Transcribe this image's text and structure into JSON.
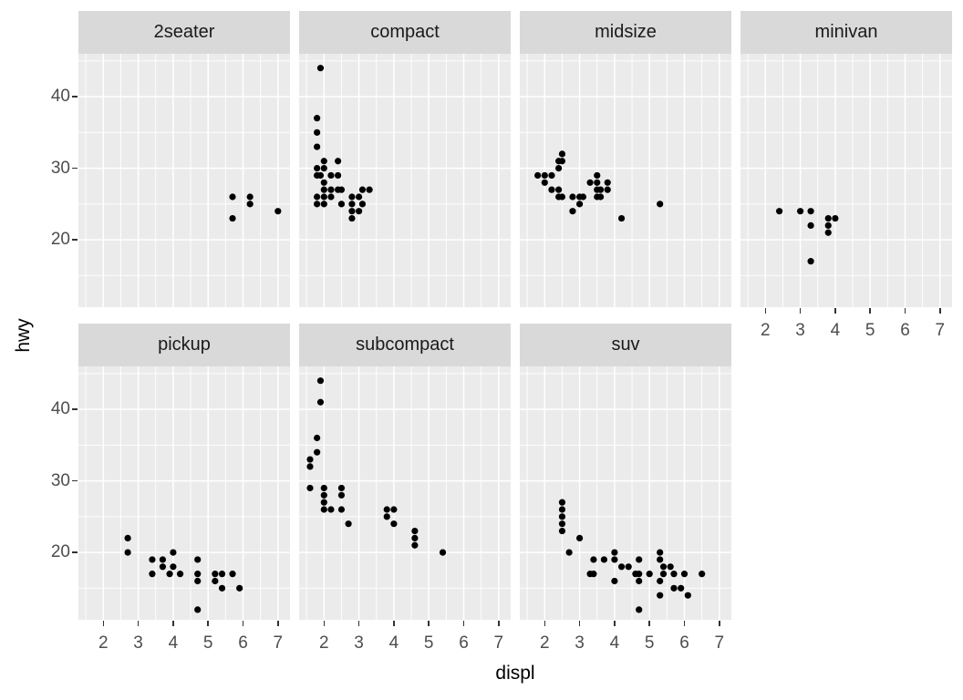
{
  "chart_data": {
    "type": "scatter",
    "title": "",
    "xlabel": "displ",
    "ylabel": "hwy",
    "facet_variable": "class",
    "x_ticks": [
      2,
      3,
      4,
      5,
      6,
      7
    ],
    "y_ticks": [
      20,
      30,
      40
    ],
    "x_minor_breaks": [
      1.5,
      2.5,
      3.5,
      4.5,
      5.5,
      6.5
    ],
    "y_minor_breaks": [
      15,
      25,
      35,
      45
    ],
    "xlim": [
      1.29,
      7.4
    ],
    "ylim": [
      10.6,
      46.0
    ],
    "grid": "white major and minor gridlines on gray panels",
    "legend": "none",
    "layout": "facet_wrap 4 columns x 2 rows, empty cell bottom-right",
    "facets": [
      {
        "label": "2seater",
        "points": [
          [
            5.7,
            26
          ],
          [
            5.7,
            23
          ],
          [
            6.2,
            26
          ],
          [
            6.2,
            25
          ],
          [
            7.0,
            24
          ]
        ]
      },
      {
        "label": "compact",
        "points": [
          [
            1.9,
            44
          ],
          [
            1.8,
            37
          ],
          [
            1.8,
            35
          ],
          [
            1.8,
            33
          ],
          [
            2.0,
            31
          ],
          [
            2.4,
            31
          ],
          [
            1.8,
            30
          ],
          [
            2.0,
            30
          ],
          [
            1.8,
            29
          ],
          [
            1.9,
            29
          ],
          [
            2.2,
            29
          ],
          [
            2.4,
            29
          ],
          [
            2.0,
            28
          ],
          [
            2.0,
            27
          ],
          [
            2.2,
            27
          ],
          [
            2.4,
            27
          ],
          [
            2.5,
            27
          ],
          [
            3.1,
            27
          ],
          [
            3.3,
            27
          ],
          [
            1.8,
            26
          ],
          [
            2.0,
            26
          ],
          [
            2.2,
            26
          ],
          [
            2.8,
            26
          ],
          [
            3.0,
            26
          ],
          [
            1.8,
            25
          ],
          [
            2.0,
            25
          ],
          [
            2.5,
            25
          ],
          [
            2.8,
            25
          ],
          [
            3.1,
            25
          ],
          [
            2.8,
            24
          ],
          [
            3.0,
            24
          ],
          [
            2.8,
            23
          ]
        ]
      },
      {
        "label": "midsize",
        "points": [
          [
            2.5,
            32
          ],
          [
            2.5,
            31
          ],
          [
            2.4,
            31
          ],
          [
            2.4,
            30
          ],
          [
            1.8,
            29
          ],
          [
            2.0,
            29
          ],
          [
            2.2,
            29
          ],
          [
            2.0,
            28
          ],
          [
            2.2,
            27
          ],
          [
            2.4,
            27
          ],
          [
            2.4,
            26
          ],
          [
            2.5,
            26
          ],
          [
            2.8,
            26
          ],
          [
            3.0,
            26
          ],
          [
            3.1,
            26
          ],
          [
            3.0,
            25
          ],
          [
            2.8,
            24
          ],
          [
            3.3,
            28
          ],
          [
            3.5,
            29
          ],
          [
            3.5,
            28
          ],
          [
            3.5,
            27
          ],
          [
            3.6,
            27
          ],
          [
            3.5,
            26
          ],
          [
            3.6,
            26
          ],
          [
            3.8,
            28
          ],
          [
            3.8,
            27
          ],
          [
            4.2,
            23
          ],
          [
            5.3,
            25
          ]
        ]
      },
      {
        "label": "minivan",
        "points": [
          [
            2.4,
            24
          ],
          [
            3.0,
            24
          ],
          [
            3.3,
            24
          ],
          [
            3.3,
            22
          ],
          [
            3.8,
            23
          ],
          [
            4.0,
            23
          ],
          [
            3.8,
            22
          ],
          [
            3.8,
            21
          ],
          [
            3.3,
            17
          ]
        ]
      },
      {
        "label": "pickup",
        "points": [
          [
            2.7,
            22
          ],
          [
            2.7,
            20
          ],
          [
            3.4,
            19
          ],
          [
            3.7,
            19
          ],
          [
            3.7,
            18
          ],
          [
            3.4,
            17
          ],
          [
            3.9,
            17
          ],
          [
            4.0,
            20
          ],
          [
            4.0,
            18
          ],
          [
            4.2,
            17
          ],
          [
            4.7,
            19
          ],
          [
            4.7,
            17
          ],
          [
            4.7,
            16
          ],
          [
            4.7,
            12
          ],
          [
            5.2,
            17
          ],
          [
            5.2,
            16
          ],
          [
            5.4,
            17
          ],
          [
            5.4,
            15
          ],
          [
            5.7,
            17
          ],
          [
            5.9,
            15
          ]
        ]
      },
      {
        "label": "subcompact",
        "points": [
          [
            1.9,
            44
          ],
          [
            1.9,
            41
          ],
          [
            1.8,
            36
          ],
          [
            1.8,
            34
          ],
          [
            1.6,
            33
          ],
          [
            1.6,
            32
          ],
          [
            1.6,
            29
          ],
          [
            2.0,
            29
          ],
          [
            2.0,
            28
          ],
          [
            2.0,
            27
          ],
          [
            2.0,
            26
          ],
          [
            2.2,
            26
          ],
          [
            2.5,
            29
          ],
          [
            2.5,
            28
          ],
          [
            2.5,
            26
          ],
          [
            2.7,
            24
          ],
          [
            3.8,
            26
          ],
          [
            3.8,
            25
          ],
          [
            4.0,
            26
          ],
          [
            4.0,
            24
          ],
          [
            4.6,
            23
          ],
          [
            4.6,
            22
          ],
          [
            4.6,
            21
          ],
          [
            5.4,
            20
          ]
        ]
      },
      {
        "label": "suv",
        "points": [
          [
            2.5,
            27
          ],
          [
            2.5,
            26
          ],
          [
            2.5,
            25
          ],
          [
            2.5,
            24
          ],
          [
            2.5,
            23
          ],
          [
            2.7,
            20
          ],
          [
            3.0,
            22
          ],
          [
            3.3,
            17
          ],
          [
            3.4,
            17
          ],
          [
            3.4,
            19
          ],
          [
            3.7,
            19
          ],
          [
            4.0,
            20
          ],
          [
            4.0,
            19
          ],
          [
            4.0,
            16
          ],
          [
            4.2,
            18
          ],
          [
            4.4,
            18
          ],
          [
            4.7,
            19
          ],
          [
            4.6,
            17
          ],
          [
            4.7,
            17
          ],
          [
            4.7,
            16
          ],
          [
            4.7,
            12
          ],
          [
            5.0,
            17
          ],
          [
            5.3,
            20
          ],
          [
            5.3,
            19
          ],
          [
            5.3,
            16
          ],
          [
            5.3,
            14
          ],
          [
            5.4,
            18
          ],
          [
            5.4,
            17
          ],
          [
            5.6,
            18
          ],
          [
            5.7,
            17
          ],
          [
            5.7,
            15
          ],
          [
            5.9,
            15
          ],
          [
            6.0,
            17
          ],
          [
            6.1,
            14
          ],
          [
            6.5,
            17
          ]
        ]
      }
    ]
  },
  "theme": {
    "background": "#FFFFFF",
    "panel_bg": "#EBEBEB",
    "strip_bg": "#D9D9D9",
    "grid_color": "#FFFFFF",
    "point_color": "#000000",
    "tick_mark_color": "#333333",
    "tick_label_color": "#4D4D4D",
    "strip_label_color": "#1A1A1A",
    "axis_title_color": "#000000"
  }
}
